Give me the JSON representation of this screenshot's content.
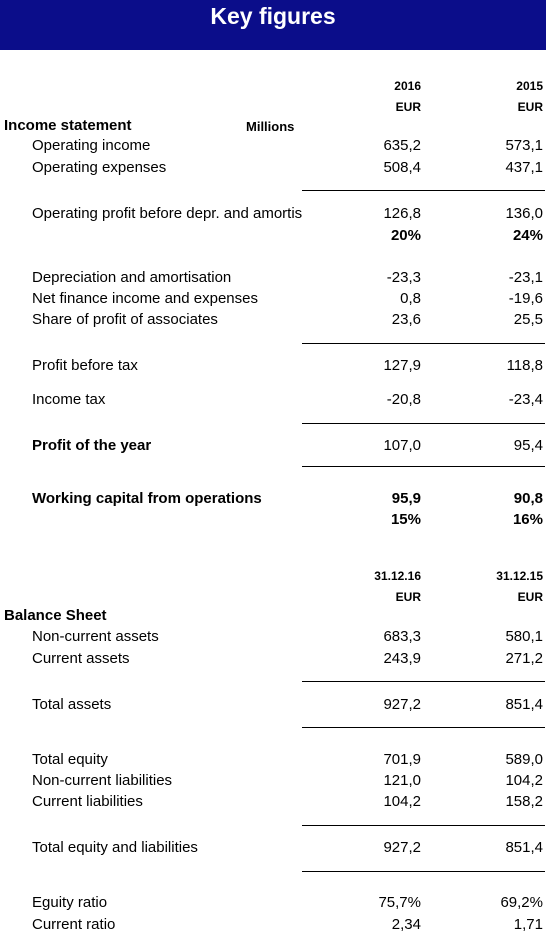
{
  "title": "Key figures",
  "income": {
    "year1": "2016",
    "year2": "2015",
    "cur1": "EUR",
    "cur2": "EUR",
    "section": "Income statement",
    "unit": "Millions",
    "rows": [
      {
        "label": "Operating income",
        "v1": "635,2",
        "v2": "573,1"
      },
      {
        "label": "Operating expenses",
        "v1": "508,4",
        "v2": "437,1"
      },
      {
        "label": "Operating profit before depr. and amortisation",
        "v1": "126,8",
        "v2": "136,0"
      },
      {
        "label": "",
        "v1": "20%",
        "v2": "24%"
      },
      {
        "label": "Depreciation and amortisation",
        "v1": "-23,3",
        "v2": "-23,1"
      },
      {
        "label": "Net finance income and expenses",
        "v1": "0,8",
        "v2": "-19,6"
      },
      {
        "label": "Share of profit of associates",
        "v1": "23,6",
        "v2": "25,5"
      },
      {
        "label": "Profit before tax",
        "v1": "127,9",
        "v2": "118,8"
      },
      {
        "label": "Income tax",
        "v1": "-20,8",
        "v2": "-23,4"
      },
      {
        "label": "Profit of the year",
        "v1": "107,0",
        "v2": "95,4"
      },
      {
        "label": "Working capital from operations",
        "v1": "95,9",
        "v2": "90,8"
      },
      {
        "label": "",
        "v1": "15%",
        "v2": "16%"
      }
    ]
  },
  "balance": {
    "date1": "31.12.16",
    "date2": "31.12.15",
    "cur1": "EUR",
    "cur2": "EUR",
    "section": "Balance Sheet",
    "rows": [
      {
        "label": "Non-current assets",
        "v1": "683,3",
        "v2": "580,1"
      },
      {
        "label": "Current assets",
        "v1": "243,9",
        "v2": "271,2"
      },
      {
        "label": "Total assets",
        "v1": "927,2",
        "v2": "851,4"
      },
      {
        "label": "Total equity",
        "v1": "701,9",
        "v2": "589,0"
      },
      {
        "label": "Non-current liabilities",
        "v1": "121,0",
        "v2": "104,2"
      },
      {
        "label": "Current liabilities",
        "v1": "104,2",
        "v2": "158,2"
      },
      {
        "label": "Total equity and liabilities",
        "v1": "927,2",
        "v2": "851,4"
      },
      {
        "label": "Eguity ratio",
        "v1": "75,7%",
        "v2": "69,2%"
      },
      {
        "label": "Current ratio",
        "v1": "2,34",
        "v2": "1,71"
      }
    ]
  }
}
